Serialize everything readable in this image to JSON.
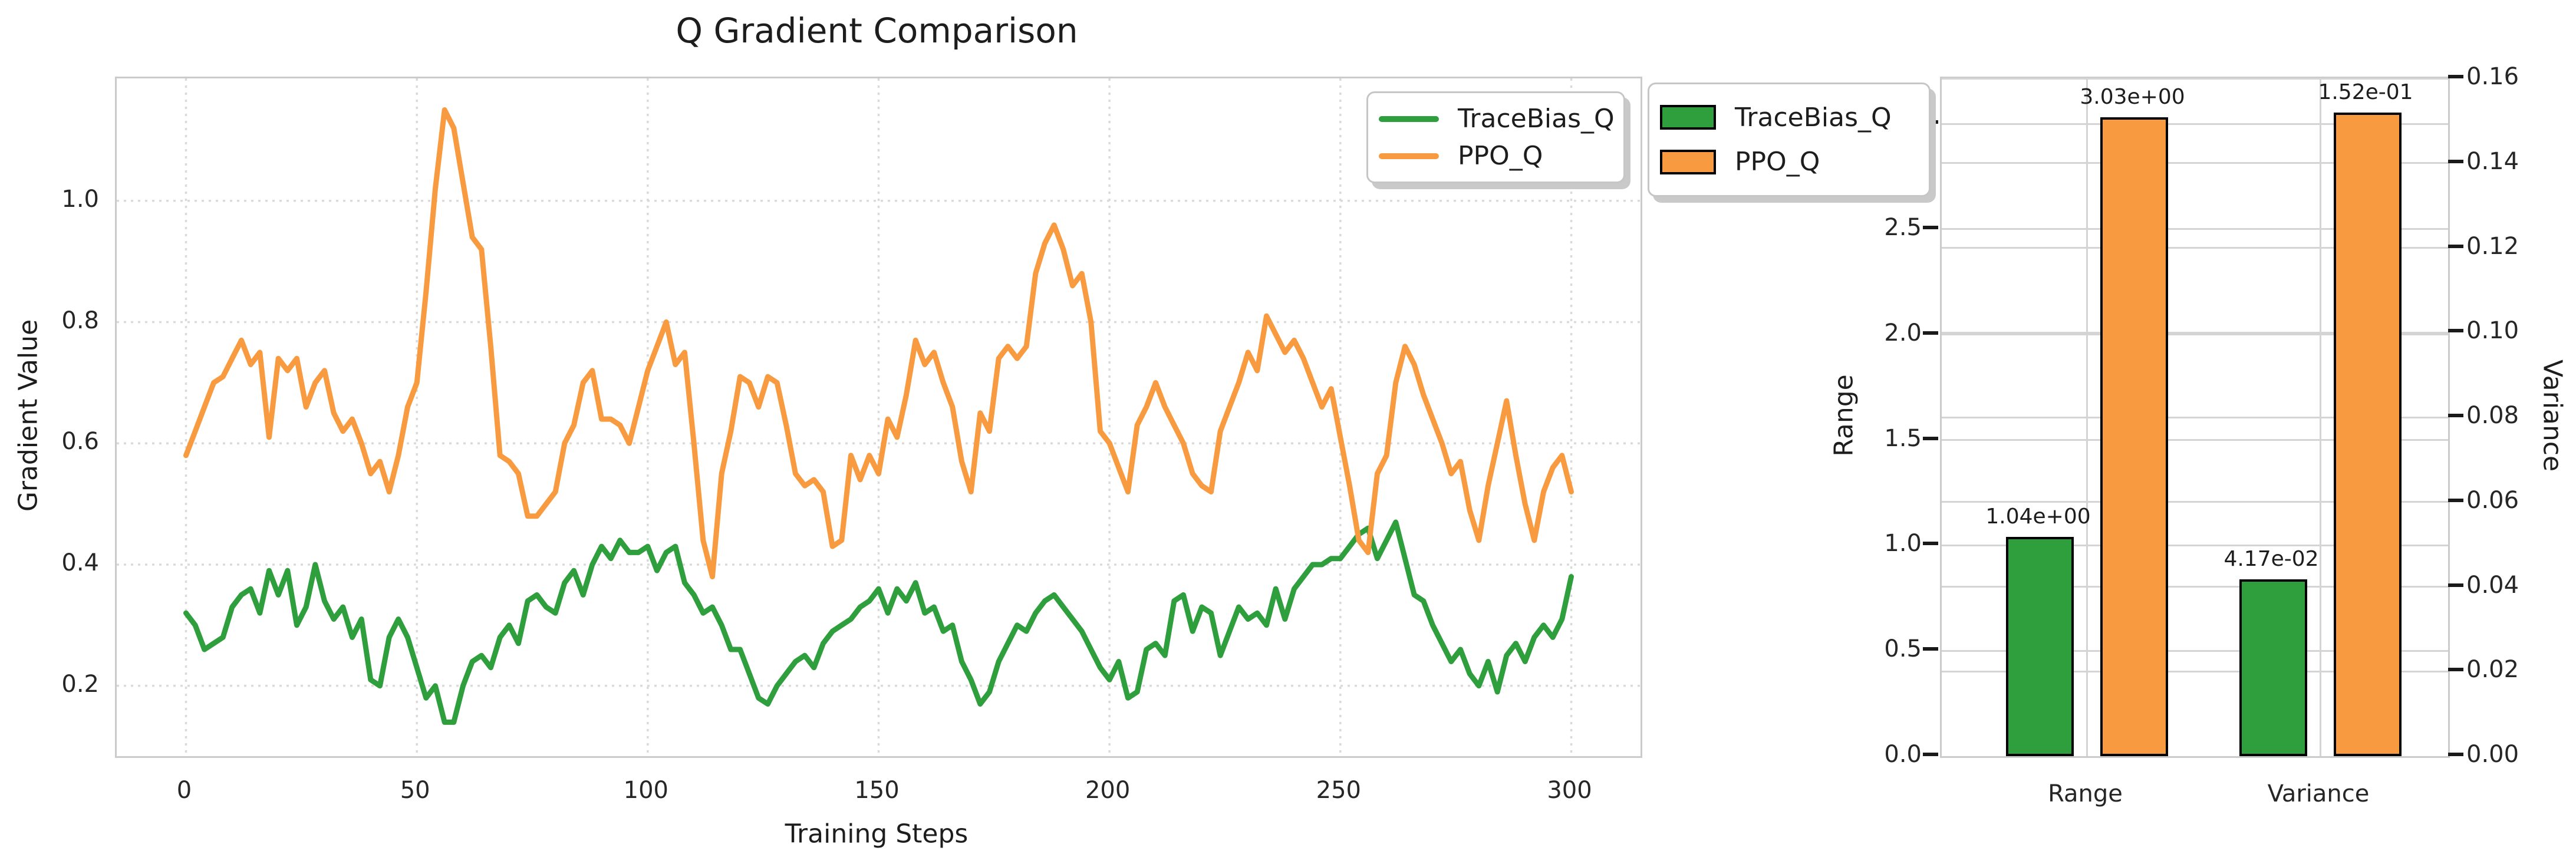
{
  "title": "Q Gradient Comparison",
  "colors": {
    "green": "#2f9e3c",
    "orange": "#f89b40",
    "grid_dashed": "#dadada",
    "grid_solid": "#d4d4d4",
    "spine": "#cbcbcb",
    "text": "#1d1d1d",
    "background": "#ffffff"
  },
  "chart_data": [
    {
      "type": "line",
      "title": "Q Gradient Comparison",
      "xlabel": "Training Steps",
      "ylabel": "Gradient Value",
      "xlim": [
        -15,
        315
      ],
      "ylim": [
        0.084,
        1.202
      ],
      "xticks": [
        "0",
        "50",
        "100",
        "150",
        "200",
        "250",
        "300"
      ],
      "xtick_values": [
        0,
        50,
        100,
        150,
        200,
        250,
        300
      ],
      "yticks": [
        "0.2",
        "0.4",
        "0.6",
        "0.8",
        "1.0"
      ],
      "ytick_values": [
        0.2,
        0.4,
        0.6,
        0.8,
        1.0
      ],
      "grid": "dashed",
      "legend_position": "upper right",
      "x_start": 0,
      "x_step": 2,
      "series": [
        {
          "name": "TraceBias_Q",
          "color": "#2f9e3c",
          "values": [
            0.32,
            0.3,
            0.26,
            0.27,
            0.28,
            0.33,
            0.35,
            0.36,
            0.32,
            0.39,
            0.35,
            0.39,
            0.3,
            0.33,
            0.4,
            0.34,
            0.31,
            0.33,
            0.28,
            0.31,
            0.21,
            0.2,
            0.28,
            0.31,
            0.28,
            0.23,
            0.18,
            0.2,
            0.14,
            0.14,
            0.2,
            0.24,
            0.25,
            0.23,
            0.28,
            0.3,
            0.27,
            0.34,
            0.35,
            0.33,
            0.32,
            0.37,
            0.39,
            0.35,
            0.4,
            0.43,
            0.41,
            0.44,
            0.42,
            0.42,
            0.43,
            0.39,
            0.42,
            0.43,
            0.37,
            0.35,
            0.32,
            0.33,
            0.3,
            0.26,
            0.26,
            0.22,
            0.18,
            0.17,
            0.2,
            0.22,
            0.24,
            0.25,
            0.23,
            0.27,
            0.29,
            0.3,
            0.31,
            0.33,
            0.34,
            0.36,
            0.32,
            0.36,
            0.34,
            0.37,
            0.32,
            0.33,
            0.29,
            0.3,
            0.24,
            0.21,
            0.17,
            0.19,
            0.24,
            0.27,
            0.3,
            0.29,
            0.32,
            0.34,
            0.35,
            0.33,
            0.31,
            0.29,
            0.26,
            0.23,
            0.21,
            0.24,
            0.18,
            0.19,
            0.26,
            0.27,
            0.25,
            0.34,
            0.35,
            0.29,
            0.33,
            0.32,
            0.25,
            0.29,
            0.33,
            0.31,
            0.32,
            0.3,
            0.36,
            0.31,
            0.36,
            0.38,
            0.4,
            0.4,
            0.41,
            0.41,
            0.43,
            0.45,
            0.46,
            0.41,
            0.44,
            0.47,
            0.41,
            0.35,
            0.34,
            0.3,
            0.27,
            0.24,
            0.26,
            0.22,
            0.2,
            0.24,
            0.19,
            0.25,
            0.27,
            0.24,
            0.28,
            0.3,
            0.28,
            0.31,
            0.38
          ]
        },
        {
          "name": "PPO_Q",
          "color": "#f89b40",
          "values": [
            0.58,
            0.62,
            0.66,
            0.7,
            0.71,
            0.74,
            0.77,
            0.73,
            0.75,
            0.61,
            0.74,
            0.72,
            0.74,
            0.66,
            0.7,
            0.72,
            0.65,
            0.62,
            0.64,
            0.6,
            0.55,
            0.57,
            0.52,
            0.58,
            0.66,
            0.7,
            0.85,
            1.02,
            1.15,
            1.12,
            1.03,
            0.94,
            0.92,
            0.76,
            0.58,
            0.57,
            0.55,
            0.48,
            0.48,
            0.5,
            0.52,
            0.6,
            0.63,
            0.7,
            0.72,
            0.64,
            0.64,
            0.63,
            0.6,
            0.66,
            0.72,
            0.76,
            0.8,
            0.73,
            0.75,
            0.6,
            0.44,
            0.38,
            0.55,
            0.62,
            0.71,
            0.7,
            0.66,
            0.71,
            0.7,
            0.63,
            0.55,
            0.53,
            0.54,
            0.52,
            0.43,
            0.44,
            0.58,
            0.54,
            0.58,
            0.55,
            0.64,
            0.61,
            0.68,
            0.77,
            0.73,
            0.75,
            0.7,
            0.66,
            0.57,
            0.52,
            0.65,
            0.62,
            0.74,
            0.76,
            0.74,
            0.76,
            0.88,
            0.93,
            0.96,
            0.92,
            0.86,
            0.88,
            0.8,
            0.62,
            0.6,
            0.56,
            0.52,
            0.63,
            0.66,
            0.7,
            0.66,
            0.63,
            0.6,
            0.55,
            0.53,
            0.52,
            0.62,
            0.66,
            0.7,
            0.75,
            0.72,
            0.81,
            0.78,
            0.75,
            0.77,
            0.74,
            0.7,
            0.66,
            0.69,
            0.61,
            0.53,
            0.44,
            0.42,
            0.55,
            0.58,
            0.7,
            0.76,
            0.73,
            0.68,
            0.64,
            0.6,
            0.55,
            0.57,
            0.49,
            0.44,
            0.53,
            0.6,
            0.67,
            0.58,
            0.5,
            0.44,
            0.52,
            0.56,
            0.58,
            0.52
          ]
        }
      ]
    },
    {
      "type": "bar",
      "categories": [
        "Range",
        "Variance"
      ],
      "left_axis": {
        "label": "Range",
        "ticks": [
          "0.0",
          "0.5",
          "1.0",
          "1.5",
          "2.0",
          "2.5",
          "3.0"
        ],
        "tick_values": [
          0.0,
          0.5,
          1.0,
          1.5,
          2.0,
          2.5,
          3.0
        ],
        "max": 3.2154
      },
      "right_axis": {
        "label": "Variance",
        "ticks": [
          "0.00",
          "0.02",
          "0.04",
          "0.06",
          "0.08",
          "0.10",
          "0.12",
          "0.14",
          "0.16"
        ],
        "tick_values": [
          0.0,
          0.02,
          0.04,
          0.06,
          0.08,
          0.1,
          0.12,
          0.14,
          0.16
        ],
        "max": 0.16
      },
      "grid": "solid",
      "legend_position": "upper left",
      "series": [
        {
          "name": "TraceBias_Q",
          "color": "#2f9e3c",
          "values": [
            1.04,
            0.0417
          ],
          "value_labels": [
            "1.04e+00",
            "4.17e-02"
          ],
          "value_axis": [
            "left",
            "right"
          ]
        },
        {
          "name": "PPO_Q",
          "color": "#f89b40",
          "values": [
            3.03,
            0.152
          ],
          "value_labels": [
            "3.03e+00",
            "1.52e-01"
          ],
          "value_axis": [
            "left",
            "right"
          ]
        }
      ]
    }
  ]
}
